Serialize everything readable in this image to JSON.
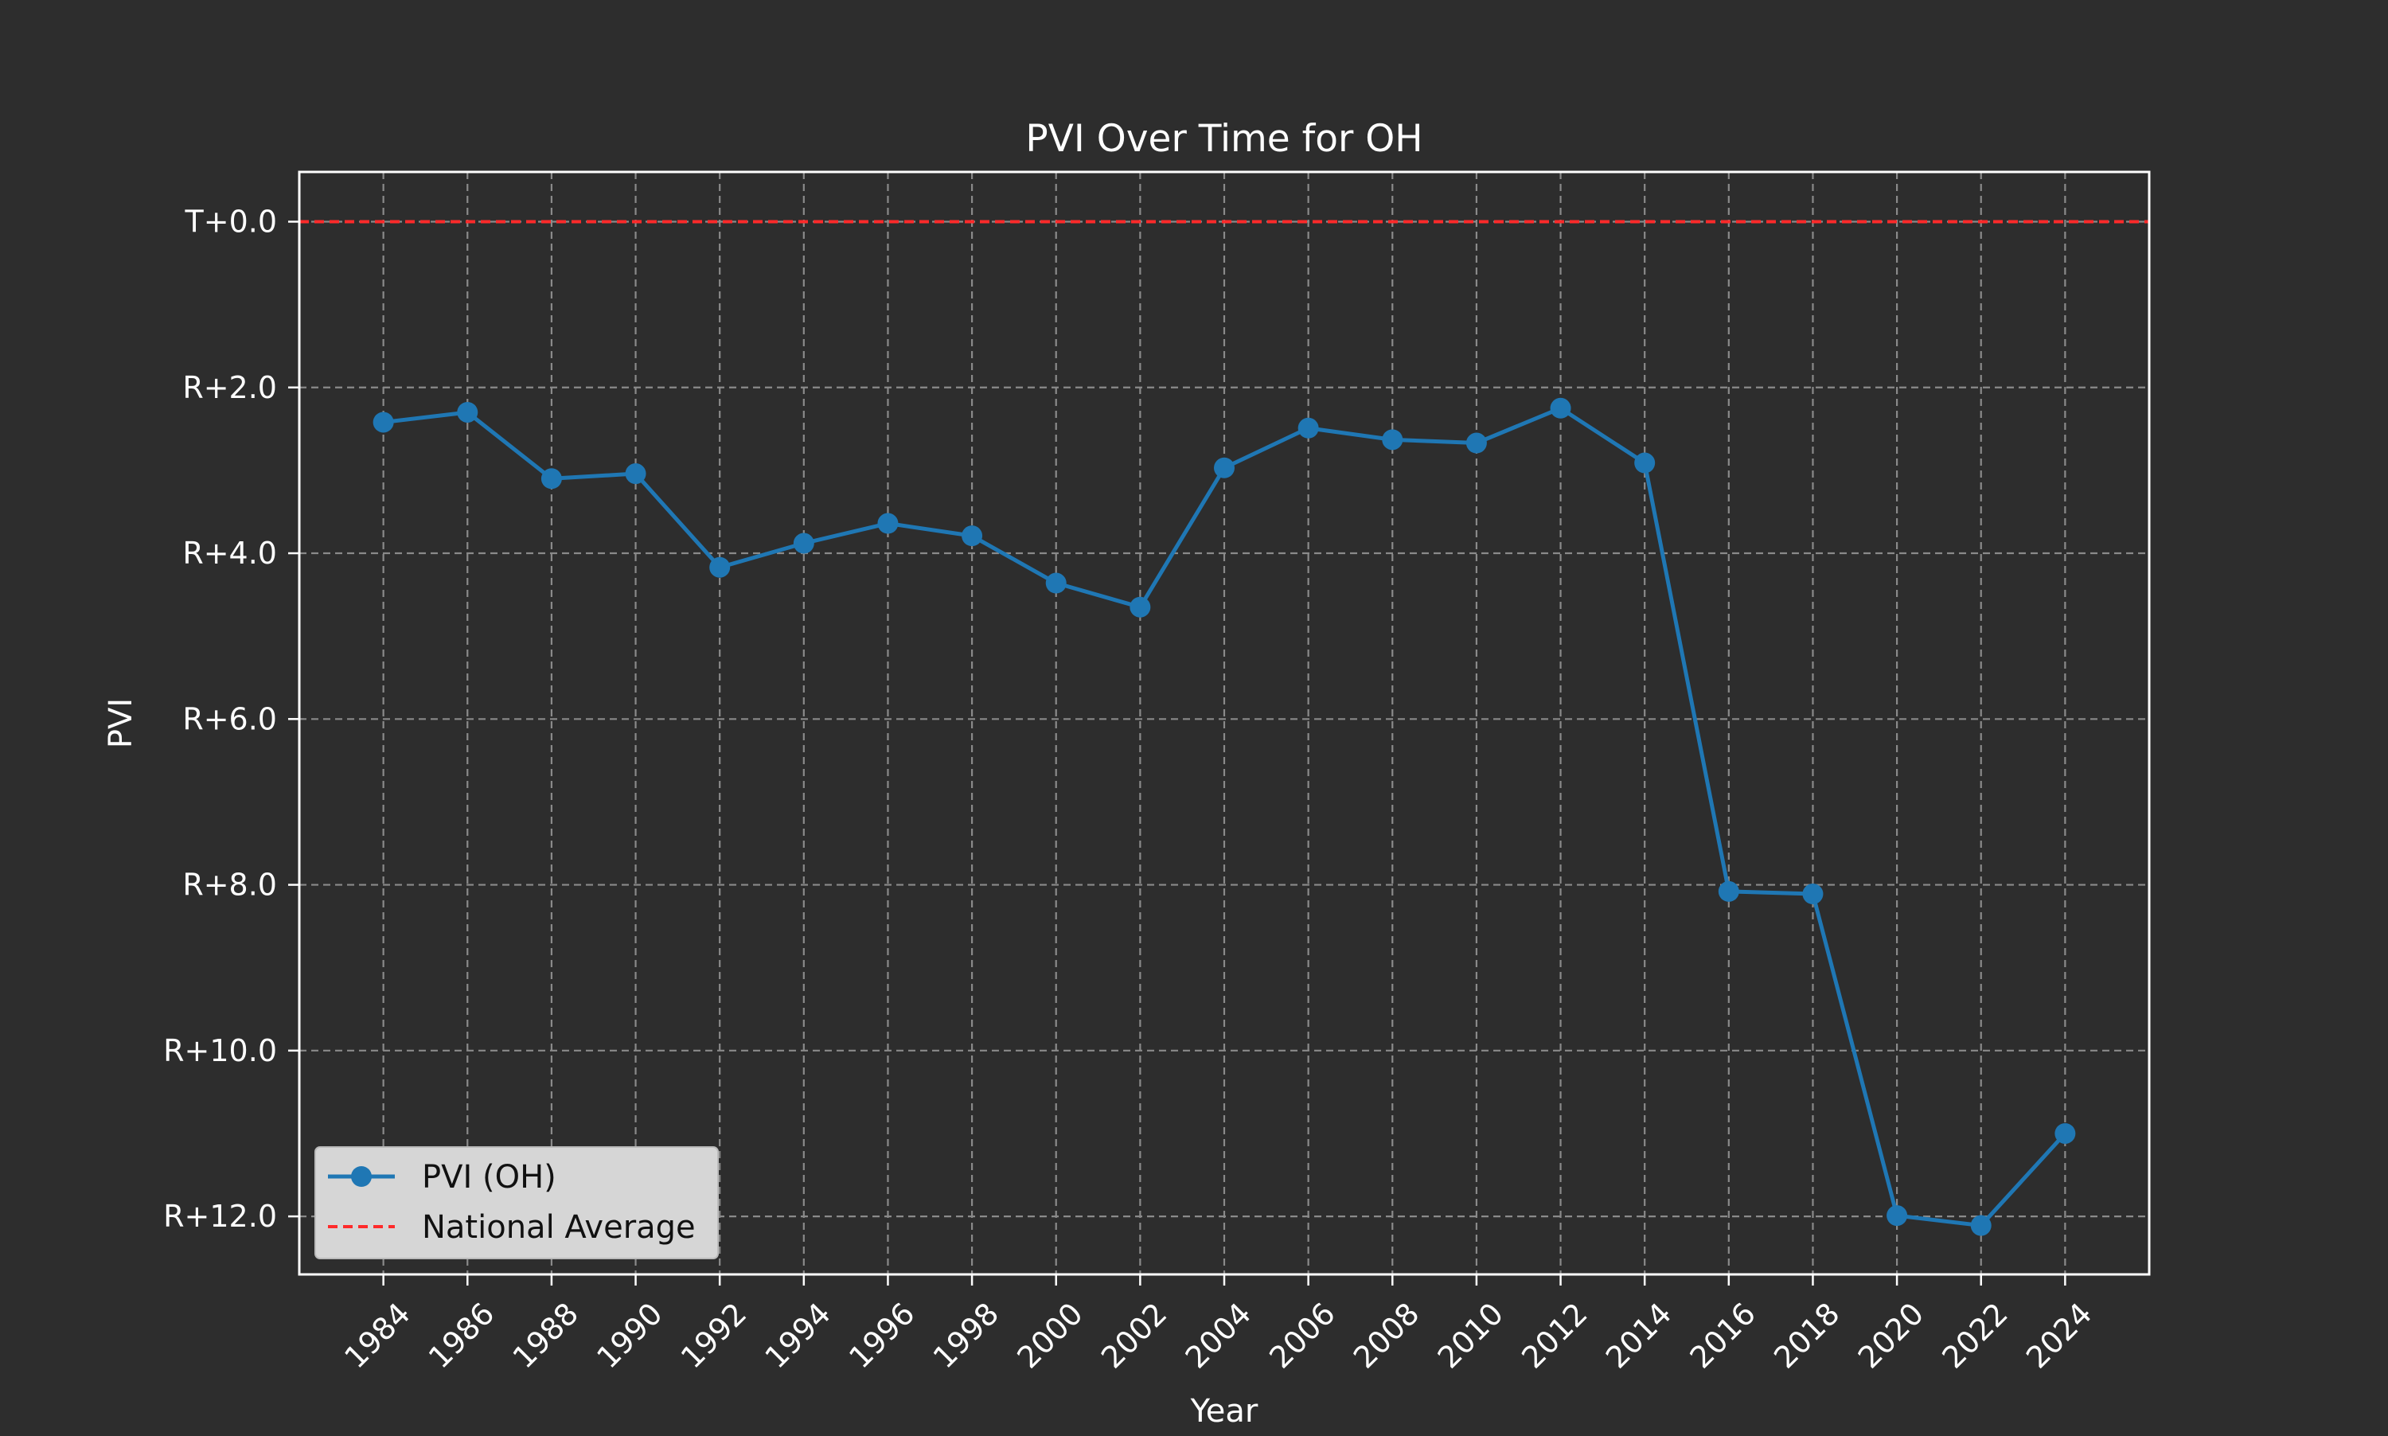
{
  "chart_data": {
    "type": "line",
    "title": "PVI Over Time for OH",
    "xlabel": "Year",
    "ylabel": "PVI",
    "x": [
      1984,
      1986,
      1988,
      1990,
      1992,
      1994,
      1996,
      1998,
      2000,
      2002,
      2004,
      2006,
      2008,
      2010,
      2012,
      2014,
      2016,
      2018,
      2020,
      2022,
      2024
    ],
    "x_tick_labels": [
      "1984",
      "1986",
      "1988",
      "1990",
      "1992",
      "1994",
      "1996",
      "1998",
      "2000",
      "2002",
      "2004",
      "2006",
      "2008",
      "2010",
      "2012",
      "2014",
      "2016",
      "2018",
      "2020",
      "2022",
      "2024"
    ],
    "xlim": [
      1982,
      2026
    ],
    "ylim": [
      -12.7,
      0.6
    ],
    "y_axis_inverted_display": true,
    "y_ticks": [
      0,
      -2,
      -4,
      -6,
      -8,
      -10,
      -12
    ],
    "y_tick_labels": [
      "T+0.0",
      "R+2.0",
      "R+4.0",
      "R+6.0",
      "R+8.0",
      "R+10.0",
      "R+12.0"
    ],
    "series": [
      {
        "name": "PVI (OH)",
        "color": "#1f77b4",
        "marker": "circle",
        "values": [
          -2.42,
          -2.3,
          -3.1,
          -3.04,
          -4.17,
          -3.88,
          -3.64,
          -3.79,
          -4.36,
          -4.65,
          -2.97,
          -2.49,
          -2.63,
          -2.67,
          -2.25,
          -2.91,
          -8.08,
          -8.11,
          -11.99,
          -12.11,
          -11.0
        ]
      }
    ],
    "reference_lines": [
      {
        "name": "National Average",
        "y": 0,
        "color": "#ff2a2a",
        "style": "dashed"
      }
    ],
    "grid": true,
    "legend_position": "lower-left",
    "legend": [
      "PVI (OH)",
      "National Average"
    ]
  },
  "colors": {
    "background": "#2d2d2d",
    "axes": "#ffffff",
    "grid": "#8a8a8a",
    "legend_bg": "#d6d6d6"
  }
}
